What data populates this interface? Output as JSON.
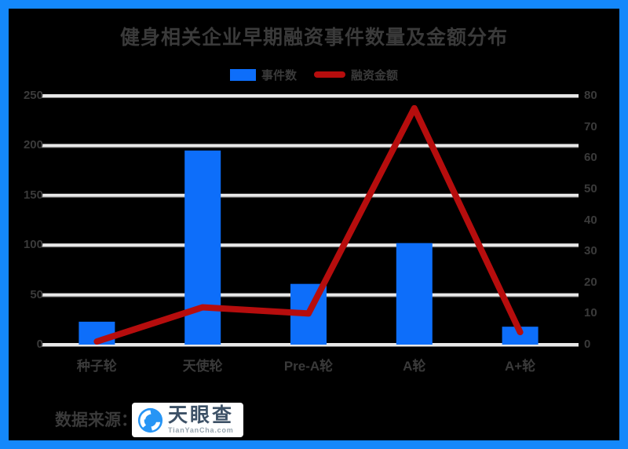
{
  "panel": {
    "background": "#000000",
    "frame_color": "#1488FB",
    "text_color": "#3A3A3A",
    "gridline_color": "#E8E8E8"
  },
  "title": "健身相关企业早期融资事件数量及金额分布",
  "legend": {
    "items": [
      {
        "label": "事件数",
        "marker": "bar",
        "color": "#0D6EFA"
      },
      {
        "label": "融资金额",
        "marker": "line",
        "color": "#B60D0D"
      }
    ]
  },
  "footer": {
    "source_label": "数据来源：",
    "logo_text": "天眼查",
    "logo_domain": "TianYanCha.com",
    "logo_blue": "#2795F5"
  },
  "chart_data": {
    "type": "bar",
    "subtype": "bar+line combo",
    "title": "健身相关企业早期融资事件数量及金额分布",
    "categories": [
      "种子轮",
      "天使轮",
      "Pre-A轮",
      "A轮",
      "A+轮"
    ],
    "series": [
      {
        "name": "事件数",
        "type": "bar",
        "axis": "left",
        "color": "#0D6EFA",
        "values": [
          23,
          195,
          61,
          102,
          18
        ]
      },
      {
        "name": "融资金额",
        "type": "line",
        "axis": "right",
        "color": "#B60D0D",
        "values": [
          1,
          12,
          10,
          76,
          4
        ]
      }
    ],
    "y_left": {
      "min": 0,
      "max": 250,
      "ticks": [
        0,
        50,
        100,
        150,
        200,
        250
      ]
    },
    "y_right": {
      "min": 0,
      "max": 80,
      "ticks": [
        0,
        10,
        20,
        30,
        40,
        50,
        60,
        70,
        80
      ]
    },
    "grid": true,
    "legend_position": "top",
    "xlabel": "",
    "ylabel_left": "",
    "ylabel_right": ""
  }
}
